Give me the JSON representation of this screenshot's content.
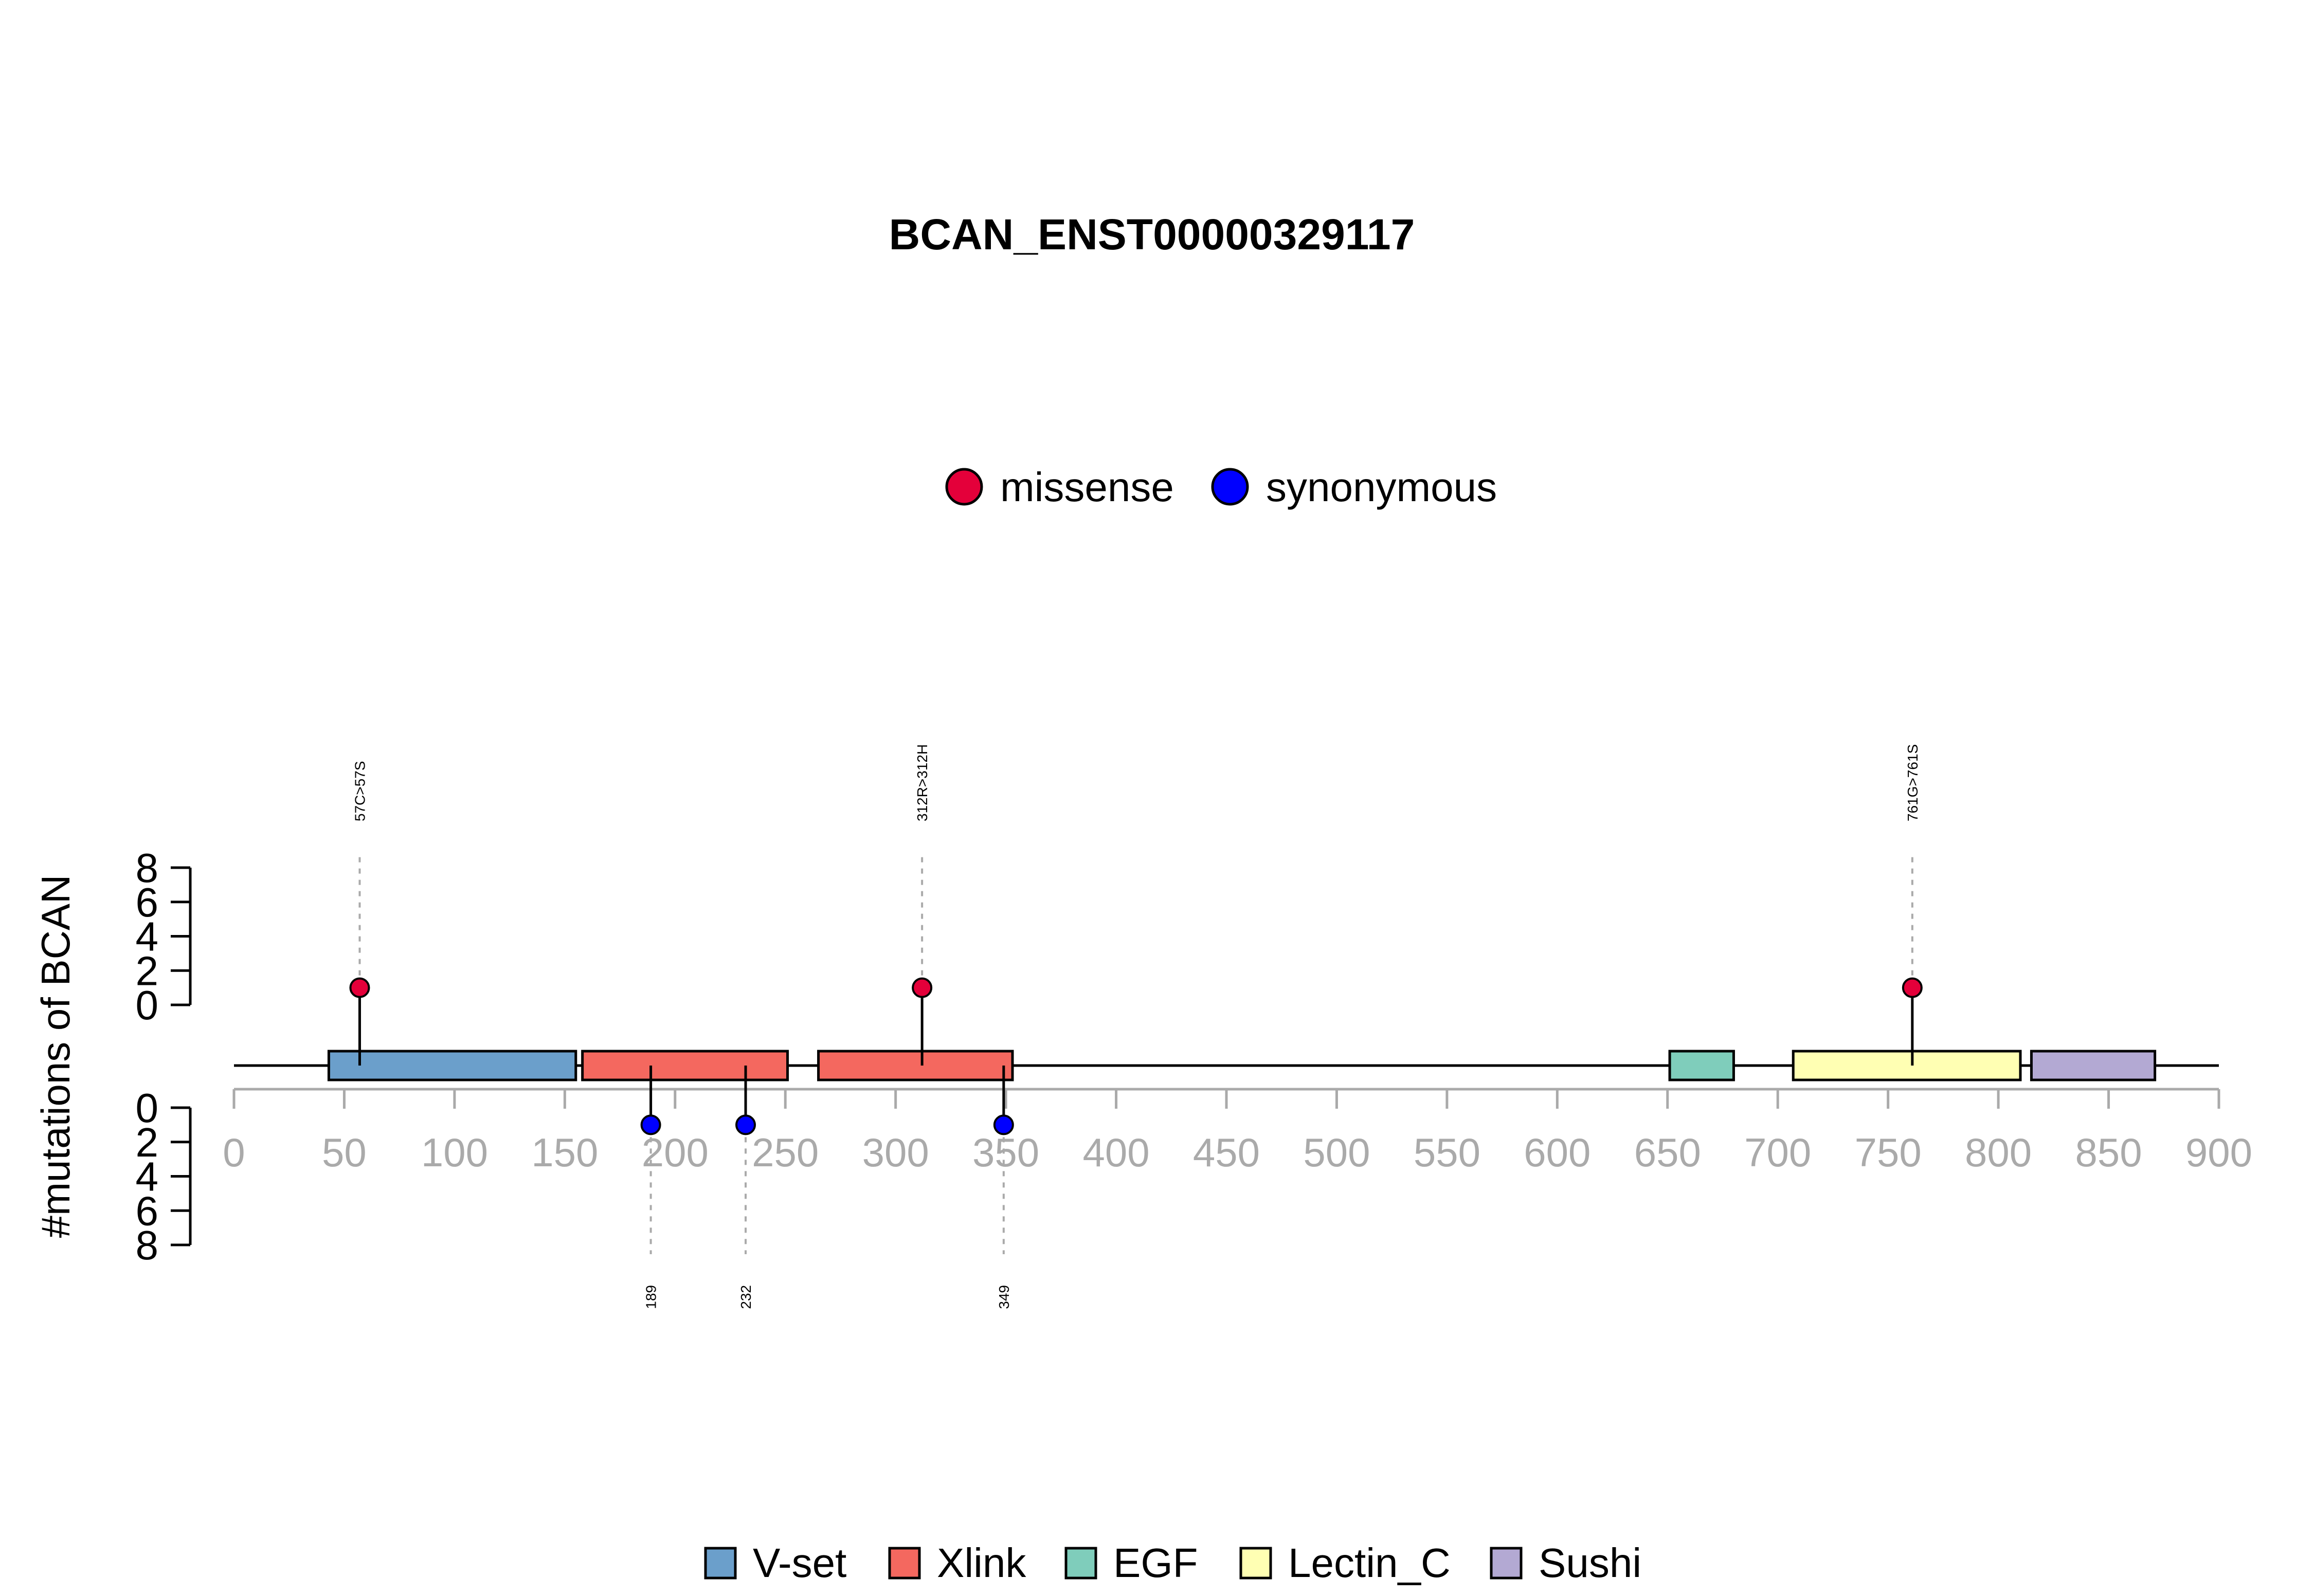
{
  "chart_data": {
    "type": "lollipop",
    "title": "BCAN_ENST00000329117",
    "ylabel": "#mutations of BCAN",
    "x_axis": {
      "range": [
        0,
        900
      ],
      "ticks": [
        0,
        50,
        100,
        150,
        200,
        250,
        300,
        350,
        400,
        450,
        500,
        550,
        600,
        650,
        700,
        750,
        800,
        850,
        900
      ]
    },
    "y_axis_upper": {
      "range": [
        0,
        8
      ],
      "ticks": [
        0,
        2,
        4,
        6,
        8
      ]
    },
    "y_axis_lower": {
      "range": [
        0,
        8
      ],
      "ticks": [
        0,
        2,
        4,
        6,
        8
      ]
    },
    "mutation_legend": [
      {
        "name": "missense",
        "color": "#e4003a"
      },
      {
        "name": "synonymous",
        "color": "#0000ff"
      }
    ],
    "mutations_upper": [
      {
        "position": 57,
        "count": 1,
        "type": "missense",
        "label": "57C>57S"
      },
      {
        "position": 312,
        "count": 1,
        "type": "missense",
        "label": "312R>312H"
      },
      {
        "position": 761,
        "count": 1,
        "type": "missense",
        "label": "761G>761S"
      }
    ],
    "mutations_lower": [
      {
        "position": 189,
        "count": 1,
        "type": "synonymous",
        "label": "189"
      },
      {
        "position": 232,
        "count": 1,
        "type": "synonymous",
        "label": "232"
      },
      {
        "position": 349,
        "count": 1,
        "type": "synonymous",
        "label": "349"
      }
    ],
    "domains": [
      {
        "name": "V-set",
        "start": 43,
        "end": 155,
        "color": "#6b9fcb"
      },
      {
        "name": "Xlink",
        "start": 158,
        "end": 251,
        "color": "#f4685f"
      },
      {
        "name": "Xlink",
        "start": 265,
        "end": 353,
        "color": "#f4685f"
      },
      {
        "name": "EGF",
        "start": 651,
        "end": 680,
        "color": "#7fcdbb"
      },
      {
        "name": "Lectin_C",
        "start": 707,
        "end": 810,
        "color": "#ffffb3"
      },
      {
        "name": "Sushi",
        "start": 815,
        "end": 871,
        "color": "#b3a9d3"
      }
    ],
    "domain_legend": [
      {
        "name": "V-set",
        "color": "#6b9fcb"
      },
      {
        "name": "Xlink",
        "color": "#f4685f"
      },
      {
        "name": "EGF",
        "color": "#7fcdbb"
      },
      {
        "name": "Lectin_C",
        "color": "#ffffb3"
      },
      {
        "name": "Sushi",
        "color": "#b3a9d3"
      }
    ]
  }
}
